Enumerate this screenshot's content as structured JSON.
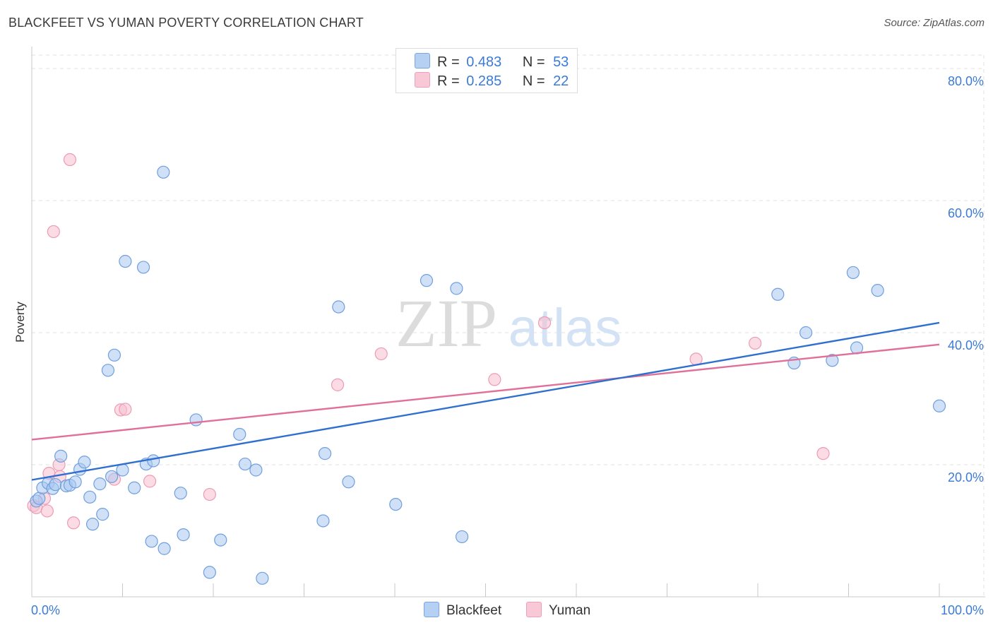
{
  "header": {
    "title": "BLACKFEET VS YUMAN POVERTY CORRELATION CHART",
    "source": "Source: ZipAtlas.com"
  },
  "watermark": {
    "zip": "ZIP",
    "atlas": "atlas"
  },
  "legend": {
    "r_label": "R =",
    "n_label": "N =",
    "rows": [
      {
        "name": "Blackfeet",
        "r": "0.483",
        "n": "53"
      },
      {
        "name": "Yuman",
        "r": "0.285",
        "n": "22"
      }
    ]
  },
  "colors": {
    "blackfeet_fill": "#a9c8f0",
    "blackfeet_stroke": "#6f9fdf",
    "blackfeet_line": "#2f6fd0",
    "yuman_fill": "#f7bfd0",
    "yuman_stroke": "#ee9ab5",
    "yuman_line": "#e0709a",
    "tick": "#3b7bd5",
    "grid": "#e2e2e2"
  },
  "chart_data": {
    "type": "scatter",
    "title": "BLACKFEET VS YUMAN POVERTY CORRELATION CHART",
    "xlabel": "",
    "ylabel": "Poverty",
    "xlim": [
      0,
      100
    ],
    "ylim": [
      0,
      82
    ],
    "x_tick_labels": [
      {
        "value": 0,
        "label": "0.0%"
      },
      {
        "value": 100,
        "label": "100.0%"
      }
    ],
    "y_tick_labels": [
      {
        "value": 20,
        "label": "20.0%"
      },
      {
        "value": 40,
        "label": "40.0%"
      },
      {
        "value": 60,
        "label": "60.0%"
      },
      {
        "value": 80,
        "label": "80.0%"
      }
    ],
    "x_minor_ticks": [
      0,
      10,
      20,
      30,
      40,
      50,
      60,
      70,
      80,
      90,
      100
    ],
    "series": [
      {
        "name": "Blackfeet",
        "trend": {
          "x": [
            0,
            100
          ],
          "y": [
            17.7,
            41.5
          ]
        },
        "points": [
          [
            0.5,
            14.5
          ],
          [
            0.8,
            14.9
          ],
          [
            1.2,
            16.5
          ],
          [
            1.8,
            17.2
          ],
          [
            2.3,
            16.4
          ],
          [
            2.6,
            17.0
          ],
          [
            3.2,
            21.3
          ],
          [
            3.8,
            16.8
          ],
          [
            4.2,
            16.9
          ],
          [
            4.8,
            17.4
          ],
          [
            5.3,
            19.3
          ],
          [
            5.8,
            20.4
          ],
          [
            6.4,
            15.1
          ],
          [
            6.7,
            11.0
          ],
          [
            7.5,
            17.1
          ],
          [
            7.8,
            12.5
          ],
          [
            8.4,
            34.3
          ],
          [
            8.8,
            18.2
          ],
          [
            9.1,
            36.6
          ],
          [
            10.0,
            19.2
          ],
          [
            10.3,
            50.8
          ],
          [
            11.3,
            16.5
          ],
          [
            12.3,
            49.9
          ],
          [
            12.6,
            20.1
          ],
          [
            13.4,
            20.6
          ],
          [
            13.2,
            8.4
          ],
          [
            14.6,
            7.3
          ],
          [
            14.5,
            64.3
          ],
          [
            16.4,
            15.7
          ],
          [
            16.7,
            9.4
          ],
          [
            18.1,
            26.8
          ],
          [
            19.6,
            3.7
          ],
          [
            20.8,
            8.6
          ],
          [
            22.9,
            24.6
          ],
          [
            23.5,
            20.1
          ],
          [
            24.7,
            19.2
          ],
          [
            25.4,
            2.8
          ],
          [
            32.1,
            11.5
          ],
          [
            32.3,
            21.7
          ],
          [
            33.8,
            43.9
          ],
          [
            34.9,
            17.4
          ],
          [
            40.1,
            14.0
          ],
          [
            43.5,
            47.9
          ],
          [
            46.8,
            46.7
          ],
          [
            47.4,
            9.1
          ],
          [
            82.2,
            45.8
          ],
          [
            84.0,
            35.4
          ],
          [
            85.3,
            40.0
          ],
          [
            88.2,
            35.8
          ],
          [
            90.5,
            49.1
          ],
          [
            90.9,
            37.7
          ],
          [
            93.2,
            46.4
          ],
          [
            100.0,
            28.9
          ]
        ]
      },
      {
        "name": "Yuman",
        "trend": {
          "x": [
            0,
            100
          ],
          "y": [
            23.8,
            38.2
          ]
        },
        "points": [
          [
            0.2,
            13.8
          ],
          [
            0.5,
            13.5
          ],
          [
            1.4,
            14.9
          ],
          [
            1.7,
            13.0
          ],
          [
            1.9,
            18.7
          ],
          [
            2.4,
            55.3
          ],
          [
            3.0,
            20.0
          ],
          [
            3.1,
            18.2
          ],
          [
            4.2,
            66.2
          ],
          [
            4.6,
            11.2
          ],
          [
            9.1,
            17.8
          ],
          [
            9.8,
            28.3
          ],
          [
            10.3,
            28.4
          ],
          [
            13.0,
            17.5
          ],
          [
            19.6,
            15.5
          ],
          [
            33.7,
            32.1
          ],
          [
            38.5,
            36.8
          ],
          [
            51.0,
            32.9
          ],
          [
            56.5,
            41.5
          ],
          [
            73.2,
            36.0
          ],
          [
            79.7,
            38.4
          ],
          [
            87.2,
            21.7
          ]
        ]
      }
    ]
  }
}
